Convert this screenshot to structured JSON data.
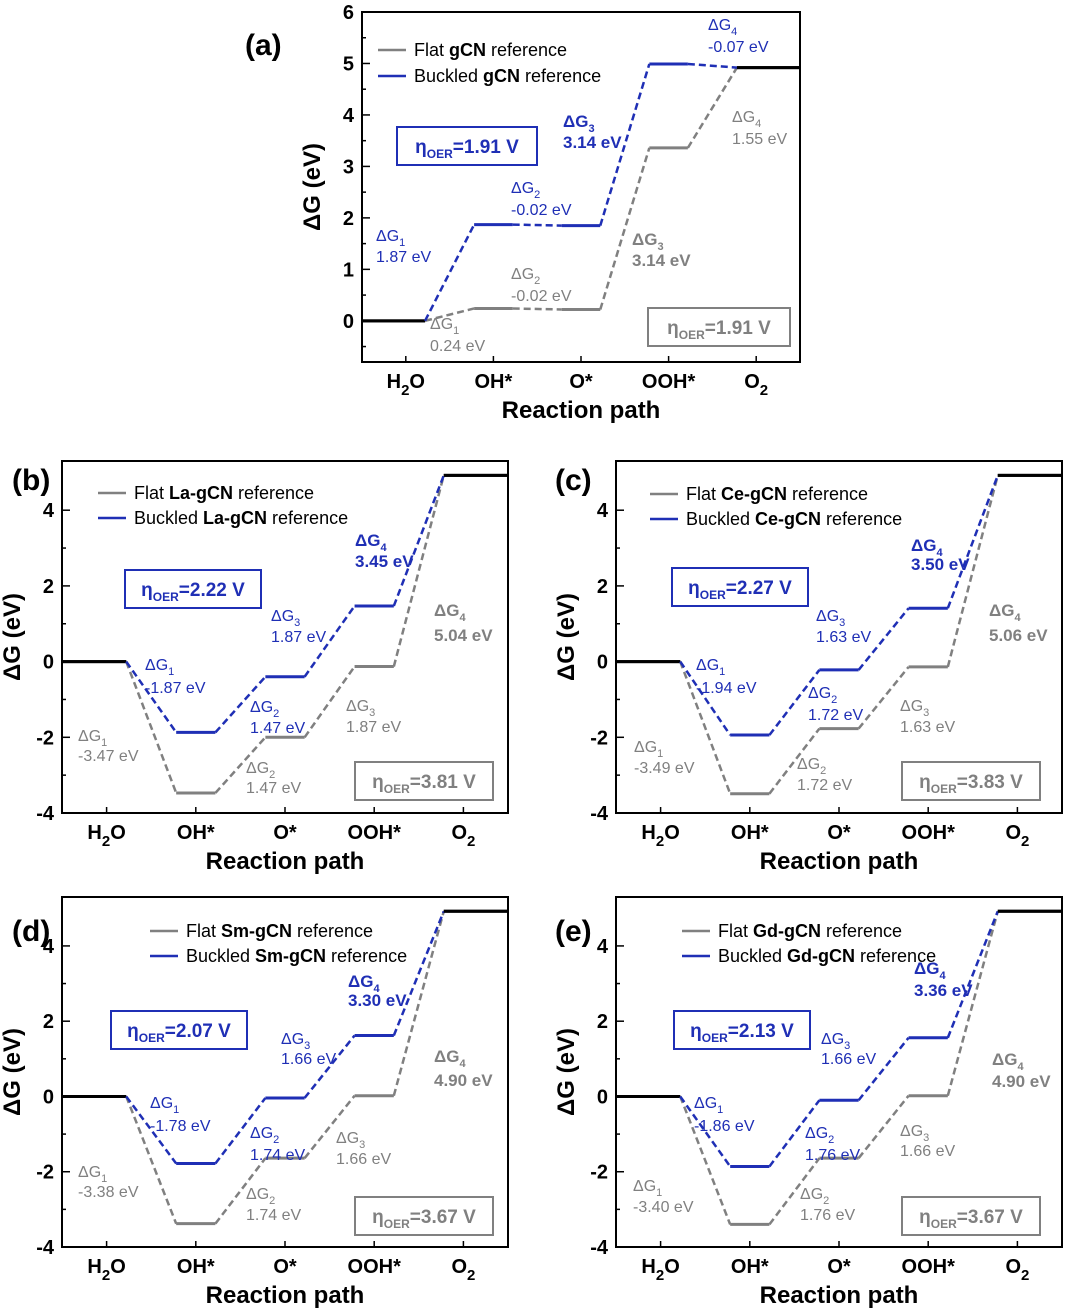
{
  "chart_data": [
    {
      "type": "line",
      "panel_label": "(a)",
      "title": "",
      "xlabel": "Reaction path",
      "ylabel": "ΔG (eV)",
      "categories": [
        "H2O",
        "OH*",
        "O*",
        "OOH*",
        "O2"
      ],
      "ylim": [
        -0.8,
        6
      ],
      "yticks": [
        0,
        1,
        2,
        3,
        4,
        5,
        6
      ],
      "legend": [
        {
          "label": "Flat",
          "bold": "gCN",
          "suffix": "reference",
          "color": "#808080"
        },
        {
          "label": "Buckled",
          "bold": "gCN",
          "suffix": "reference",
          "color": "#1f2fb5"
        }
      ],
      "series": [
        {
          "name": "Flat gCN reference",
          "color": "#808080",
          "values": [
            0,
            0.24,
            0.22,
            3.36,
            4.92
          ]
        },
        {
          "name": "Buckled gCN reference",
          "color": "#1f2fb5",
          "values": [
            0,
            1.87,
            1.85,
            4.99,
            4.92
          ]
        }
      ],
      "eta": {
        "flat": "=1.91 V",
        "buckled": "=1.91 V"
      },
      "annotations": {
        "buckled": [
          {
            "sub": "1",
            "value": "1.87 eV",
            "bold": false
          },
          {
            "sub": "2",
            "value": "-0.02 eV",
            "bold": false
          },
          {
            "sub": "3",
            "value": "3.14 eV",
            "bold": true
          },
          {
            "sub": "4",
            "value": "-0.07 eV",
            "bold": false
          }
        ],
        "flat": [
          {
            "sub": "1",
            "value": "0.24 eV",
            "bold": false
          },
          {
            "sub": "2",
            "value": "-0.02 eV",
            "bold": false
          },
          {
            "sub": "3",
            "value": "3.14 eV",
            "bold": true
          },
          {
            "sub": "4",
            "value": "1.55 eV",
            "bold": false
          }
        ]
      }
    },
    {
      "type": "line",
      "panel_label": "(b)",
      "title": "",
      "xlabel": "Reaction path",
      "ylabel": "ΔG (eV)",
      "categories": [
        "H2O",
        "OH*",
        "O*",
        "OOH*",
        "O2"
      ],
      "ylim": [
        -4,
        5.3
      ],
      "yticks": [
        -4,
        -2,
        0,
        2,
        4
      ],
      "legend": [
        {
          "label": "Flat",
          "bold": "La-gCN",
          "suffix": "reference",
          "color": "#808080"
        },
        {
          "label": "Buckled",
          "bold": "La-gCN",
          "suffix": "reference",
          "color": "#1f2fb5"
        }
      ],
      "series": [
        {
          "name": "Flat La-gCN reference",
          "color": "#808080",
          "values": [
            0,
            -3.47,
            -2.0,
            -0.13,
            4.92
          ]
        },
        {
          "name": "Buckled La-gCN reference",
          "color": "#1f2fb5",
          "values": [
            0,
            -1.87,
            -0.4,
            1.47,
            4.92
          ]
        }
      ],
      "eta": {
        "flat": "=3.81 V",
        "buckled": "=2.22 V"
      },
      "annotations": {
        "buckled": [
          {
            "sub": "1",
            "value": "-1.87 eV",
            "bold": false
          },
          {
            "sub": "2",
            "value": "1.47 eV",
            "bold": false
          },
          {
            "sub": "3",
            "value": "1.87 eV",
            "bold": false
          },
          {
            "sub": "4",
            "value": "3.45 eV",
            "bold": true
          }
        ],
        "flat": [
          {
            "sub": "1",
            "value": "-3.47 eV",
            "bold": false
          },
          {
            "sub": "2",
            "value": "1.47 eV",
            "bold": false
          },
          {
            "sub": "3",
            "value": "1.87 eV",
            "bold": false
          },
          {
            "sub": "4",
            "value": "5.04 eV",
            "bold": true
          }
        ]
      }
    },
    {
      "type": "line",
      "panel_label": "(c)",
      "title": "",
      "xlabel": "Reaction path",
      "ylabel": "ΔG (eV)",
      "categories": [
        "H2O",
        "OH*",
        "O*",
        "OOH*",
        "O2"
      ],
      "ylim": [
        -4,
        5.3
      ],
      "yticks": [
        -4,
        -2,
        0,
        2,
        4
      ],
      "legend": [
        {
          "label": "Flat",
          "bold": "Ce-gCN",
          "suffix": "reference",
          "color": "#808080"
        },
        {
          "label": "Buckled",
          "bold": "Ce-gCN",
          "suffix": "reference",
          "color": "#1f2fb5"
        }
      ],
      "series": [
        {
          "name": "Flat Ce-gCN reference",
          "color": "#808080",
          "values": [
            0,
            -3.49,
            -1.77,
            -0.14,
            4.92
          ]
        },
        {
          "name": "Buckled Ce-gCN reference",
          "color": "#1f2fb5",
          "values": [
            0,
            -1.94,
            -0.22,
            1.41,
            4.92
          ]
        }
      ],
      "eta": {
        "flat": "=3.83 V",
        "buckled": "=2.27 V"
      },
      "annotations": {
        "buckled": [
          {
            "sub": "1",
            "value": "-1.94 eV",
            "bold": false
          },
          {
            "sub": "2",
            "value": "1.72 eV",
            "bold": false
          },
          {
            "sub": "3",
            "value": "1.63 eV",
            "bold": false
          },
          {
            "sub": "4",
            "value": "3.50 eV",
            "bold": true
          }
        ],
        "flat": [
          {
            "sub": "1",
            "value": "-3.49 eV",
            "bold": false
          },
          {
            "sub": "2",
            "value": "1.72 eV",
            "bold": false
          },
          {
            "sub": "3",
            "value": "1.63 eV",
            "bold": false
          },
          {
            "sub": "4",
            "value": "5.06 eV",
            "bold": true
          }
        ]
      }
    },
    {
      "type": "line",
      "panel_label": "(d)",
      "title": "",
      "xlabel": "Reaction path",
      "ylabel": "ΔG (eV)",
      "categories": [
        "H2O",
        "OH*",
        "O*",
        "OOH*",
        "O2"
      ],
      "ylim": [
        -4,
        5.3
      ],
      "yticks": [
        -4,
        -2,
        0,
        2,
        4
      ],
      "legend": [
        {
          "label": "Flat",
          "bold": "Sm-gCN",
          "suffix": "reference",
          "color": "#808080"
        },
        {
          "label": "Buckled",
          "bold": "Sm-gCN",
          "suffix": "reference",
          "color": "#1f2fb5"
        }
      ],
      "series": [
        {
          "name": "Flat Sm-gCN reference",
          "color": "#808080",
          "values": [
            0,
            -3.38,
            -1.64,
            0.02,
            4.92
          ]
        },
        {
          "name": "Buckled Sm-gCN reference",
          "color": "#1f2fb5",
          "values": [
            0,
            -1.78,
            -0.04,
            1.62,
            4.92
          ]
        }
      ],
      "eta": {
        "flat": "=3.67 V",
        "buckled": "=2.07 V"
      },
      "annotations": {
        "buckled": [
          {
            "sub": "1",
            "value": "-1.78 eV",
            "bold": false
          },
          {
            "sub": "2",
            "value": "1.74 eV",
            "bold": false
          },
          {
            "sub": "3",
            "value": "1.66 eV",
            "bold": false
          },
          {
            "sub": "4",
            "value": "3.30 eV",
            "bold": true
          }
        ],
        "flat": [
          {
            "sub": "1",
            "value": "-3.38 eV",
            "bold": false
          },
          {
            "sub": "2",
            "value": "1.74 eV",
            "bold": false
          },
          {
            "sub": "3",
            "value": "1.66 eV",
            "bold": false
          },
          {
            "sub": "4",
            "value": "4.90 eV",
            "bold": true
          }
        ]
      }
    },
    {
      "type": "line",
      "panel_label": "(e)",
      "title": "",
      "xlabel": "Reaction path",
      "ylabel": "ΔG (eV)",
      "categories": [
        "H2O",
        "OH*",
        "O*",
        "OOH*",
        "O2"
      ],
      "ylim": [
        -4,
        5.3
      ],
      "yticks": [
        -4,
        -2,
        0,
        2,
        4
      ],
      "legend": [
        {
          "label": "Flat",
          "bold": "Gd-gCN",
          "suffix": "reference",
          "color": "#808080"
        },
        {
          "label": "Buckled",
          "bold": "Gd-gCN",
          "suffix": "reference",
          "color": "#1f2fb5"
        }
      ],
      "series": [
        {
          "name": "Flat Gd-gCN reference",
          "color": "#808080",
          "values": [
            0,
            -3.4,
            -1.64,
            0.02,
            4.92
          ]
        },
        {
          "name": "Buckled Gd-gCN reference",
          "color": "#1f2fb5",
          "values": [
            0,
            -1.86,
            -0.1,
            1.56,
            4.92
          ]
        }
      ],
      "eta": {
        "flat": "=3.67 V",
        "buckled": "=2.13 V"
      },
      "annotations": {
        "buckled": [
          {
            "sub": "1",
            "value": "-1.86 eV",
            "bold": false
          },
          {
            "sub": "2",
            "value": "1.76 eV",
            "bold": false
          },
          {
            "sub": "3",
            "value": "1.66 eV",
            "bold": false
          },
          {
            "sub": "4",
            "value": "3.36 eV",
            "bold": true
          }
        ],
        "flat": [
          {
            "sub": "1",
            "value": "-3.40 eV",
            "bold": false
          },
          {
            "sub": "2",
            "value": "1.76 eV",
            "bold": false
          },
          {
            "sub": "3",
            "value": "1.66 eV",
            "bold": false
          },
          {
            "sub": "4",
            "value": "4.90 eV",
            "bold": true
          }
        ]
      }
    }
  ]
}
